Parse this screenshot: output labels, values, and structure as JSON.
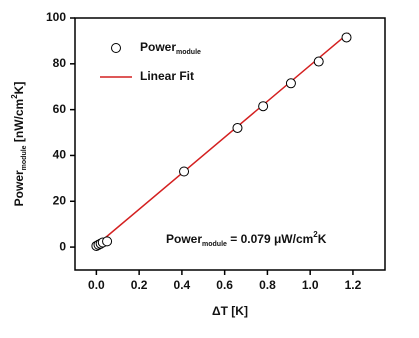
{
  "chart_data": {
    "type": "scatter",
    "xlabel": "ΔT [K]",
    "ylabel": [
      "Power",
      "module",
      " [nW/cm",
      "2",
      "K]"
    ],
    "annotation": [
      "Power",
      "module",
      " = 0.079 μW/cm",
      "2",
      "K"
    ],
    "xlim": [
      -0.1,
      1.35
    ],
    "ylim": [
      -10,
      100
    ],
    "xticks": [
      {
        "value": 0,
        "label": "0.0"
      },
      0.2,
      0.4,
      0.6,
      0.8,
      {
        "value": 1,
        "label": "1.0"
      },
      1.2
    ],
    "yticks": [
      0,
      20,
      40,
      60,
      80,
      100
    ],
    "series": [
      {
        "name": "Power",
        "name_sub": "module",
        "type": "scatter",
        "color": "#ffffff",
        "x": [
          0.0,
          0.01,
          0.02,
          0.03,
          0.05,
          0.41,
          0.66,
          0.78,
          0.91,
          1.04,
          1.17
        ],
        "values": [
          0.5,
          1,
          1.5,
          2,
          2.5,
          33,
          52,
          61.5,
          71.5,
          81,
          91.5
        ]
      },
      {
        "name": "Linear Fit",
        "type": "line",
        "color": "#d42020",
        "x": [
          0.0,
          1.18
        ],
        "values": [
          0.8,
          93.5
        ]
      }
    ]
  }
}
